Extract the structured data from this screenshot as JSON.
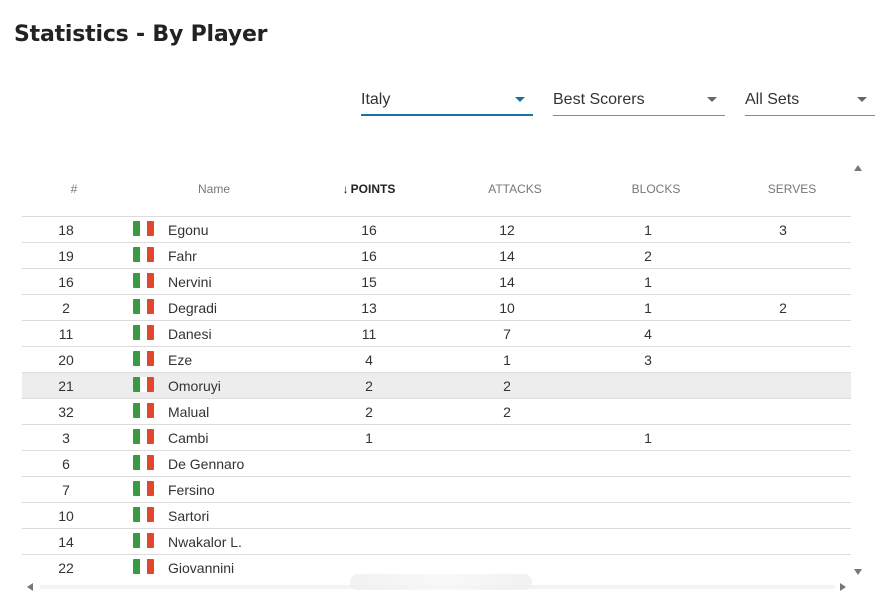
{
  "page": {
    "title": "Statistics - By Player"
  },
  "filters": [
    {
      "label": "Italy",
      "active": true
    },
    {
      "label": "Best Scorers",
      "active": false
    },
    {
      "label": "All Sets",
      "active": false
    }
  ],
  "table": {
    "sort_arrow": "↓",
    "columns": [
      "#",
      "Name",
      "POINTS",
      "ATTACKS",
      "BLOCKS",
      "SERVES"
    ],
    "sorted_column": "POINTS",
    "flag_colors": [
      "#3a9a43",
      "#ffffff",
      "#e2462f"
    ],
    "highlight_row_index": 6,
    "rows": [
      {
        "num": "18",
        "name": "Egonu",
        "points": "16",
        "attacks": "12",
        "blocks": "1",
        "serves": "3"
      },
      {
        "num": "19",
        "name": "Fahr",
        "points": "16",
        "attacks": "14",
        "blocks": "2",
        "serves": ""
      },
      {
        "num": "16",
        "name": "Nervini",
        "points": "15",
        "attacks": "14",
        "blocks": "1",
        "serves": ""
      },
      {
        "num": "2",
        "name": "Degradi",
        "points": "13",
        "attacks": "10",
        "blocks": "1",
        "serves": "2"
      },
      {
        "num": "11",
        "name": "Danesi",
        "points": "11",
        "attacks": "7",
        "blocks": "4",
        "serves": ""
      },
      {
        "num": "20",
        "name": "Eze",
        "points": "4",
        "attacks": "1",
        "blocks": "3",
        "serves": ""
      },
      {
        "num": "21",
        "name": "Omoruyi",
        "points": "2",
        "attacks": "2",
        "blocks": "",
        "serves": ""
      },
      {
        "num": "32",
        "name": "Malual",
        "points": "2",
        "attacks": "2",
        "blocks": "",
        "serves": ""
      },
      {
        "num": "3",
        "name": "Cambi",
        "points": "1",
        "attacks": "",
        "blocks": "1",
        "serves": ""
      },
      {
        "num": "6",
        "name": "De Gennaro",
        "points": "",
        "attacks": "",
        "blocks": "",
        "serves": ""
      },
      {
        "num": "7",
        "name": "Fersino",
        "points": "",
        "attacks": "",
        "blocks": "",
        "serves": ""
      },
      {
        "num": "10",
        "name": "Sartori",
        "points": "",
        "attacks": "",
        "blocks": "",
        "serves": ""
      },
      {
        "num": "14",
        "name": "Nwakalor L.",
        "points": "",
        "attacks": "",
        "blocks": "",
        "serves": ""
      },
      {
        "num": "22",
        "name": "Giovannini",
        "points": "",
        "attacks": "",
        "blocks": "",
        "serves": ""
      }
    ]
  }
}
